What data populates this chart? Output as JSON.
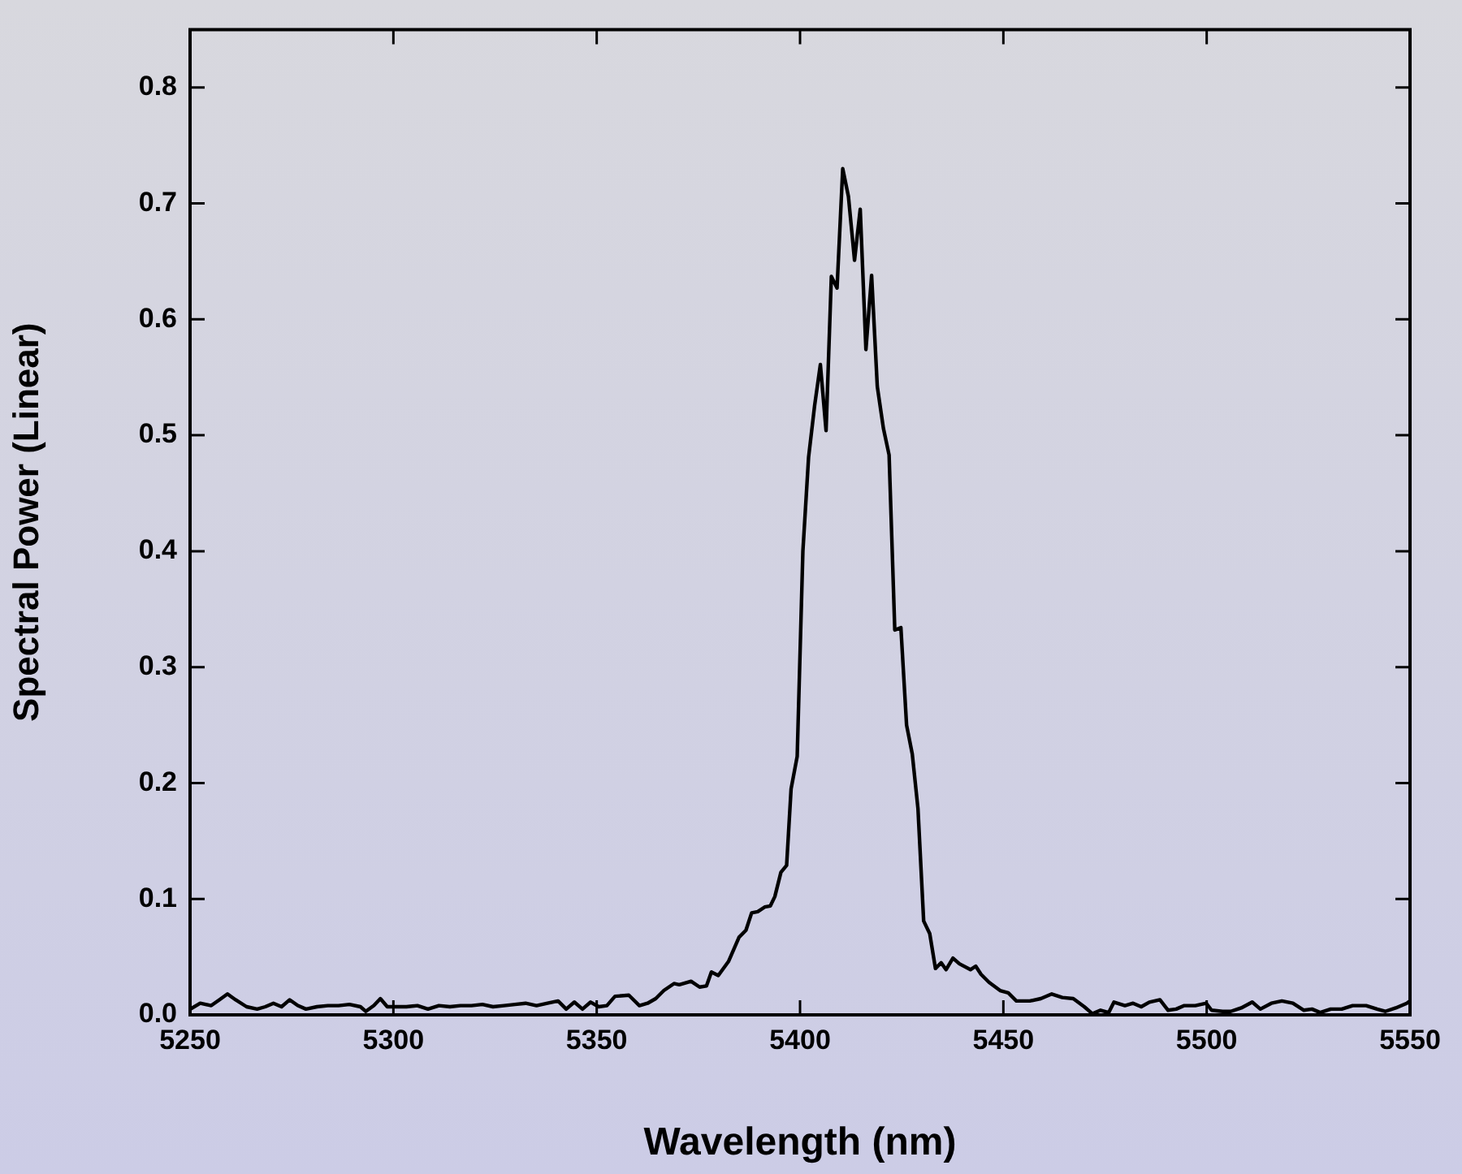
{
  "chart_data": {
    "type": "line",
    "xlabel": "Wavelength (nm)",
    "ylabel": "Spectral Power (Linear)",
    "xlim": [
      5250,
      5550
    ],
    "xticks": [
      5250,
      5300,
      5350,
      5400,
      5450,
      5500,
      5550
    ],
    "ylim": [
      0,
      0.85
    ],
    "yticks": [
      {
        "value": 0,
        "label": "0.0"
      },
      0.1,
      0.2,
      0.3,
      0.4,
      0.5,
      0.6,
      0.7,
      0.8
    ],
    "grid": false,
    "legend": false,
    "marker": "none",
    "line_style": "solid",
    "series": [
      {
        "color": "#000000",
        "x": [
          5250.1,
          5252.5,
          5255.2,
          5257.2,
          5259.2,
          5261.2,
          5263.9,
          5266.5,
          5268.5,
          5270.5,
          5272.5,
          5274.5,
          5276.5,
          5278.5,
          5281.2,
          5283.9,
          5286.5,
          5289.2,
          5291.9,
          5293.2,
          5295.2,
          5296.8,
          5298.5,
          5299.9,
          5303.2,
          5305.9,
          5308.5,
          5311.2,
          5313.9,
          5316.5,
          5319.2,
          5321.9,
          5324.5,
          5327.2,
          5329.9,
          5332.5,
          5335.2,
          5337.9,
          5340.5,
          5342.5,
          5344.5,
          5346.5,
          5348.5,
          5350.5,
          5352.5,
          5354.5,
          5357.9,
          5360.5,
          5362.5,
          5364.5,
          5366.5,
          5369,
          5370.3,
          5373.2,
          5375.3,
          5377,
          5378.2,
          5379.9,
          5382.4,
          5385,
          5386.7,
          5388.1,
          5389.6,
          5391.3,
          5392.7,
          5393.8,
          5395.3,
          5396.7,
          5397.8,
          5399.3,
          5400.7,
          5402.1,
          5403.6,
          5405,
          5406.4,
          5407.7,
          5409.1,
          5410.5,
          5411.9,
          5413.4,
          5414.8,
          5416.2,
          5417.6,
          5419,
          5420.5,
          5421.9,
          5423.3,
          5424.8,
          5426.2,
          5427.6,
          5429,
          5430.4,
          5431.9,
          5433.3,
          5434.7,
          5435.9,
          5437.6,
          5439.2,
          5441.9,
          5443.2,
          5444.5,
          5446.5,
          5449.2,
          5451.2,
          5453.2,
          5456.5,
          5459.2,
          5461.9,
          5464.5,
          5467.2,
          5469.9,
          5471.9,
          5473.9,
          5475.9,
          5477.2,
          5479.9,
          5481.9,
          5483.9,
          5485.9,
          5488.5,
          5490.5,
          5492.5,
          5494.5,
          5497.2,
          5499.9,
          5501.2,
          5503.9,
          5505.9,
          5508.5,
          5511.2,
          5513.2,
          5515.9,
          5518.5,
          5521.2,
          5523.9,
          5525.9,
          5527.9,
          5530.5,
          5533.2,
          5535.9,
          5539.2,
          5541.9,
          5543.9,
          5546.5,
          5549.2,
          5550
        ],
        "values": [
          0.005,
          0.01,
          0.008,
          0.013,
          0.018,
          0.013,
          0.007,
          0.005,
          0.007,
          0.01,
          0.007,
          0.013,
          0.008,
          0.005,
          0.007,
          0.008,
          0.008,
          0.009,
          0.007,
          0.003,
          0.008,
          0.014,
          0.007,
          0.007,
          0.007,
          0.008,
          0.005,
          0.008,
          0.007,
          0.008,
          0.008,
          0.009,
          0.007,
          0.008,
          0.009,
          0.01,
          0.008,
          0.01,
          0.012,
          0.005,
          0.011,
          0.005,
          0.011,
          0.007,
          0.008,
          0.016,
          0.017,
          0.008,
          0.01,
          0.014,
          0.021,
          0.027,
          0.026,
          0.029,
          0.024,
          0.025,
          0.037,
          0.034,
          0.046,
          0.067,
          0.073,
          0.088,
          0.089,
          0.093,
          0.094,
          0.102,
          0.123,
          0.129,
          0.195,
          0.223,
          0.4,
          0.481,
          0.526,
          0.561,
          0.504,
          0.637,
          0.627,
          0.73,
          0.706,
          0.651,
          0.695,
          0.574,
          0.638,
          0.542,
          0.506,
          0.483,
          0.332,
          0.334,
          0.25,
          0.225,
          0.178,
          0.081,
          0.07,
          0.04,
          0.045,
          0.039,
          0.049,
          0.044,
          0.039,
          0.042,
          0.035,
          0.028,
          0.021,
          0.019,
          0.012,
          0.012,
          0.014,
          0.018,
          0.015,
          0.014,
          0.007,
          0.001,
          0.004,
          0.002,
          0.011,
          0.008,
          0.01,
          0.007,
          0.011,
          0.013,
          0.004,
          0.005,
          0.008,
          0.008,
          0.01,
          0.004,
          0.003,
          0.003,
          0.006,
          0.011,
          0.005,
          0.01,
          0.012,
          0.01,
          0.004,
          0.005,
          0.002,
          0.005,
          0.005,
          0.008,
          0.008,
          0.005,
          0.003,
          0.006,
          0.01,
          0.012
        ]
      }
    ]
  }
}
